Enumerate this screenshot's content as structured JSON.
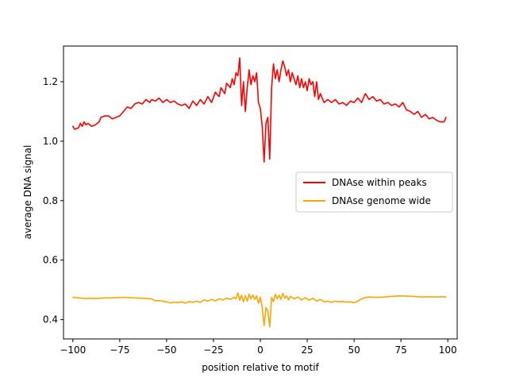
{
  "chart_data": {
    "type": "line",
    "title": "",
    "xlabel": "position relative to motif",
    "ylabel": "average DNA signal",
    "xlim": [
      -105,
      105
    ],
    "ylim": [
      0.335,
      1.32
    ],
    "xticks": [
      -100,
      -75,
      -50,
      -25,
      0,
      25,
      50,
      75,
      100
    ],
    "yticks": [
      0.4,
      0.6,
      0.8,
      1.0,
      1.2
    ],
    "grid": false,
    "legend_position": "center-right",
    "series": [
      {
        "name": "DNAse within peaks",
        "color": "#ff0000",
        "points": [
          [
            -100,
            1.05
          ],
          [
            -99,
            1.04
          ],
          [
            -97,
            1.045
          ],
          [
            -96,
            1.06
          ],
          [
            -95,
            1.05
          ],
          [
            -94,
            1.065
          ],
          [
            -93,
            1.055
          ],
          [
            -92,
            1.06
          ],
          [
            -90,
            1.05
          ],
          [
            -88,
            1.055
          ],
          [
            -86,
            1.065
          ],
          [
            -85,
            1.08
          ],
          [
            -83,
            1.085
          ],
          [
            -81,
            1.085
          ],
          [
            -79,
            1.075
          ],
          [
            -77,
            1.08
          ],
          [
            -75,
            1.085
          ],
          [
            -73,
            1.1
          ],
          [
            -71,
            1.115
          ],
          [
            -69,
            1.11
          ],
          [
            -67,
            1.125
          ],
          [
            -65,
            1.13
          ],
          [
            -63,
            1.125
          ],
          [
            -61,
            1.14
          ],
          [
            -59,
            1.13
          ],
          [
            -58,
            1.14
          ],
          [
            -56,
            1.135
          ],
          [
            -54,
            1.145
          ],
          [
            -52,
            1.13
          ],
          [
            -50,
            1.14
          ],
          [
            -48,
            1.13
          ],
          [
            -46,
            1.135
          ],
          [
            -44,
            1.125
          ],
          [
            -42,
            1.12
          ],
          [
            -40,
            1.125
          ],
          [
            -38,
            1.11
          ],
          [
            -36,
            1.135
          ],
          [
            -34,
            1.12
          ],
          [
            -32,
            1.14
          ],
          [
            -30,
            1.125
          ],
          [
            -28,
            1.15
          ],
          [
            -26,
            1.13
          ],
          [
            -24,
            1.165
          ],
          [
            -22,
            1.15
          ],
          [
            -21,
            1.18
          ],
          [
            -19,
            1.16
          ],
          [
            -18,
            1.195
          ],
          [
            -16,
            1.18
          ],
          [
            -15,
            1.21
          ],
          [
            -14,
            1.19
          ],
          [
            -13,
            1.23
          ],
          [
            -12,
            1.22
          ],
          [
            -11,
            1.28
          ],
          [
            -10,
            1.12
          ],
          [
            -9,
            1.2
          ],
          [
            -8,
            1.1
          ],
          [
            -7,
            1.18
          ],
          [
            -6,
            1.24
          ],
          [
            -5,
            1.19
          ],
          [
            -4,
            1.22
          ],
          [
            -3,
            1.2
          ],
          [
            -2,
            1.23
          ],
          [
            -1,
            1.13
          ],
          [
            0,
            1.11
          ],
          [
            1,
            1.05
          ],
          [
            2,
            0.93
          ],
          [
            3,
            1.06
          ],
          [
            4,
            1.08
          ],
          [
            5,
            0.94
          ],
          [
            6,
            1.18
          ],
          [
            7,
            1.26
          ],
          [
            8,
            1.21
          ],
          [
            9,
            1.24
          ],
          [
            10,
            1.2
          ],
          [
            11,
            1.24
          ],
          [
            12,
            1.27
          ],
          [
            13,
            1.25
          ],
          [
            14,
            1.22
          ],
          [
            15,
            1.24
          ],
          [
            16,
            1.2
          ],
          [
            17,
            1.23
          ],
          [
            18,
            1.21
          ],
          [
            19,
            1.19
          ],
          [
            20,
            1.22
          ],
          [
            21,
            1.18
          ],
          [
            22,
            1.21
          ],
          [
            23,
            1.18
          ],
          [
            24,
            1.2
          ],
          [
            25,
            1.17
          ],
          [
            26,
            1.21
          ],
          [
            27,
            1.19
          ],
          [
            28,
            1.2
          ],
          [
            29,
            1.15
          ],
          [
            30,
            1.2
          ],
          [
            31,
            1.14
          ],
          [
            32,
            1.16
          ],
          [
            34,
            1.13
          ],
          [
            36,
            1.14
          ],
          [
            38,
            1.13
          ],
          [
            40,
            1.14
          ],
          [
            42,
            1.125
          ],
          [
            44,
            1.13
          ],
          [
            46,
            1.12
          ],
          [
            48,
            1.135
          ],
          [
            50,
            1.13
          ],
          [
            52,
            1.145
          ],
          [
            54,
            1.13
          ],
          [
            56,
            1.16
          ],
          [
            58,
            1.14
          ],
          [
            60,
            1.15
          ],
          [
            62,
            1.135
          ],
          [
            64,
            1.14
          ],
          [
            66,
            1.125
          ],
          [
            68,
            1.13
          ],
          [
            70,
            1.12
          ],
          [
            72,
            1.125
          ],
          [
            74,
            1.115
          ],
          [
            76,
            1.13
          ],
          [
            78,
            1.105
          ],
          [
            80,
            1.1
          ],
          [
            82,
            1.09
          ],
          [
            84,
            1.1
          ],
          [
            86,
            1.08
          ],
          [
            88,
            1.09
          ],
          [
            90,
            1.075
          ],
          [
            92,
            1.08
          ],
          [
            94,
            1.07
          ],
          [
            96,
            1.065
          ],
          [
            98,
            1.065
          ],
          [
            99,
            1.08
          ]
        ]
      },
      {
        "name": "DNAse genome wide",
        "color": "#ffa500",
        "points": [
          [
            -100,
            0.475
          ],
          [
            -97,
            0.473
          ],
          [
            -94,
            0.471
          ],
          [
            -91,
            0.472
          ],
          [
            -88,
            0.471
          ],
          [
            -85,
            0.472
          ],
          [
            -82,
            0.473
          ],
          [
            -79,
            0.473
          ],
          [
            -76,
            0.474
          ],
          [
            -73,
            0.475
          ],
          [
            -70,
            0.474
          ],
          [
            -67,
            0.473
          ],
          [
            -64,
            0.472
          ],
          [
            -61,
            0.471
          ],
          [
            -58,
            0.47
          ],
          [
            -56,
            0.463
          ],
          [
            -54,
            0.464
          ],
          [
            -52,
            0.462
          ],
          [
            -50,
            0.46
          ],
          [
            -48,
            0.456
          ],
          [
            -46,
            0.459
          ],
          [
            -44,
            0.457
          ],
          [
            -42,
            0.46
          ],
          [
            -40,
            0.455
          ],
          [
            -38,
            0.461
          ],
          [
            -36,
            0.458
          ],
          [
            -34,
            0.462
          ],
          [
            -32,
            0.458
          ],
          [
            -30,
            0.466
          ],
          [
            -28,
            0.462
          ],
          [
            -26,
            0.468
          ],
          [
            -24,
            0.463
          ],
          [
            -22,
            0.47
          ],
          [
            -20,
            0.466
          ],
          [
            -18,
            0.472
          ],
          [
            -16,
            0.468
          ],
          [
            -14,
            0.475
          ],
          [
            -13,
            0.47
          ],
          [
            -12,
            0.49
          ],
          [
            -11,
            0.465
          ],
          [
            -10,
            0.482
          ],
          [
            -9,
            0.46
          ],
          [
            -8,
            0.48
          ],
          [
            -7,
            0.462
          ],
          [
            -6,
            0.485
          ],
          [
            -5,
            0.47
          ],
          [
            -4,
            0.483
          ],
          [
            -3,
            0.468
          ],
          [
            -2,
            0.48
          ],
          [
            -1,
            0.455
          ],
          [
            0,
            0.475
          ],
          [
            1,
            0.44
          ],
          [
            2,
            0.38
          ],
          [
            3,
            0.44
          ],
          [
            4,
            0.43
          ],
          [
            5,
            0.375
          ],
          [
            6,
            0.475
          ],
          [
            7,
            0.46
          ],
          [
            8,
            0.485
          ],
          [
            9,
            0.47
          ],
          [
            10,
            0.482
          ],
          [
            11,
            0.468
          ],
          [
            12,
            0.488
          ],
          [
            13,
            0.472
          ],
          [
            14,
            0.48
          ],
          [
            15,
            0.466
          ],
          [
            16,
            0.478
          ],
          [
            18,
            0.47
          ],
          [
            20,
            0.476
          ],
          [
            22,
            0.466
          ],
          [
            24,
            0.474
          ],
          [
            26,
            0.465
          ],
          [
            28,
            0.472
          ],
          [
            30,
            0.462
          ],
          [
            32,
            0.468
          ],
          [
            34,
            0.46
          ],
          [
            36,
            0.462
          ],
          [
            38,
            0.458
          ],
          [
            40,
            0.462
          ],
          [
            42,
            0.46
          ],
          [
            44,
            0.461
          ],
          [
            46,
            0.459
          ],
          [
            48,
            0.46
          ],
          [
            50,
            0.457
          ],
          [
            52,
            0.462
          ],
          [
            54,
            0.47
          ],
          [
            56,
            0.474
          ],
          [
            58,
            0.476
          ],
          [
            62,
            0.475
          ],
          [
            66,
            0.476
          ],
          [
            70,
            0.478
          ],
          [
            74,
            0.48
          ],
          [
            78,
            0.479
          ],
          [
            82,
            0.478
          ],
          [
            86,
            0.476
          ],
          [
            90,
            0.477
          ],
          [
            94,
            0.476
          ],
          [
            97,
            0.477
          ],
          [
            99,
            0.476
          ]
        ]
      }
    ]
  }
}
